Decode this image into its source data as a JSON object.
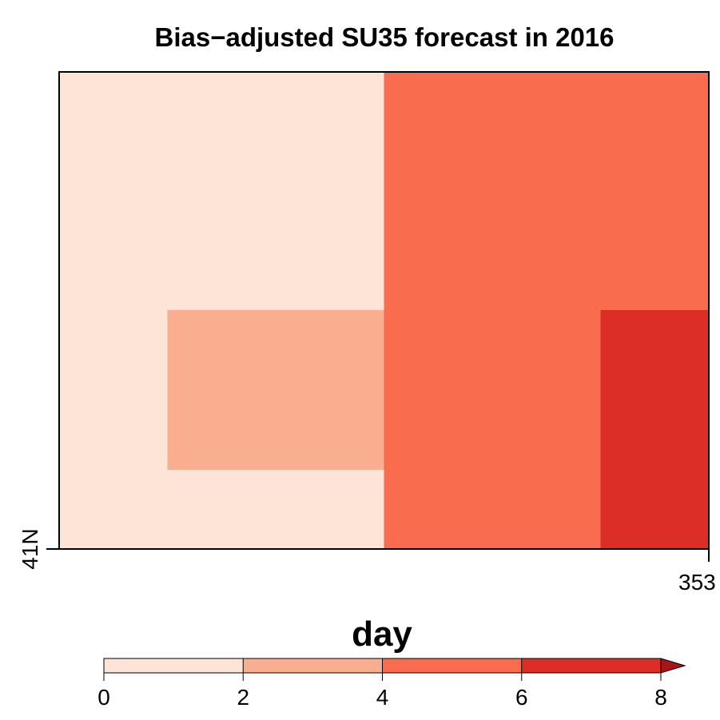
{
  "chart_data": {
    "type": "heatmap",
    "title": "Bias−adjusted SU35 forecast in 2016",
    "x_tick_labels": [
      "353"
    ],
    "y_tick_labels": [
      "41N"
    ],
    "grid": false,
    "cells": [
      {
        "col": 0,
        "row": 0,
        "value": 1
      },
      {
        "col": 1,
        "row": 0,
        "value": 1
      },
      {
        "col": 2,
        "row": 0,
        "value": 1
      },
      {
        "col": 3,
        "row": 0,
        "value": 5
      },
      {
        "col": 4,
        "row": 0,
        "value": 5
      },
      {
        "col": 5,
        "row": 0,
        "value": 5
      },
      {
        "col": 0,
        "row": 1,
        "value": 1
      },
      {
        "col": 1,
        "row": 1,
        "value": 3
      },
      {
        "col": 2,
        "row": 1,
        "value": 3
      },
      {
        "col": 3,
        "row": 1,
        "value": 5
      },
      {
        "col": 4,
        "row": 1,
        "value": 5
      },
      {
        "col": 5,
        "row": 1,
        "value": 7
      },
      {
        "col": 0,
        "row": 2,
        "value": 1
      },
      {
        "col": 1,
        "row": 2,
        "value": 1
      },
      {
        "col": 2,
        "row": 2,
        "value": 1
      },
      {
        "col": 3,
        "row": 2,
        "value": 5
      },
      {
        "col": 4,
        "row": 2,
        "value": 5
      },
      {
        "col": 5,
        "row": 2,
        "value": 7
      }
    ],
    "colorbar": {
      "label": "day",
      "breaks": [
        0,
        2,
        4,
        6,
        8
      ],
      "tick_labels": [
        "0",
        "2",
        "4",
        "6",
        "8"
      ],
      "colors": [
        "#fee3d7",
        "#f9ae8f",
        "#f96c4d",
        "#dc2e27"
      ],
      "above_color": "#a81518",
      "extends": "right"
    }
  }
}
